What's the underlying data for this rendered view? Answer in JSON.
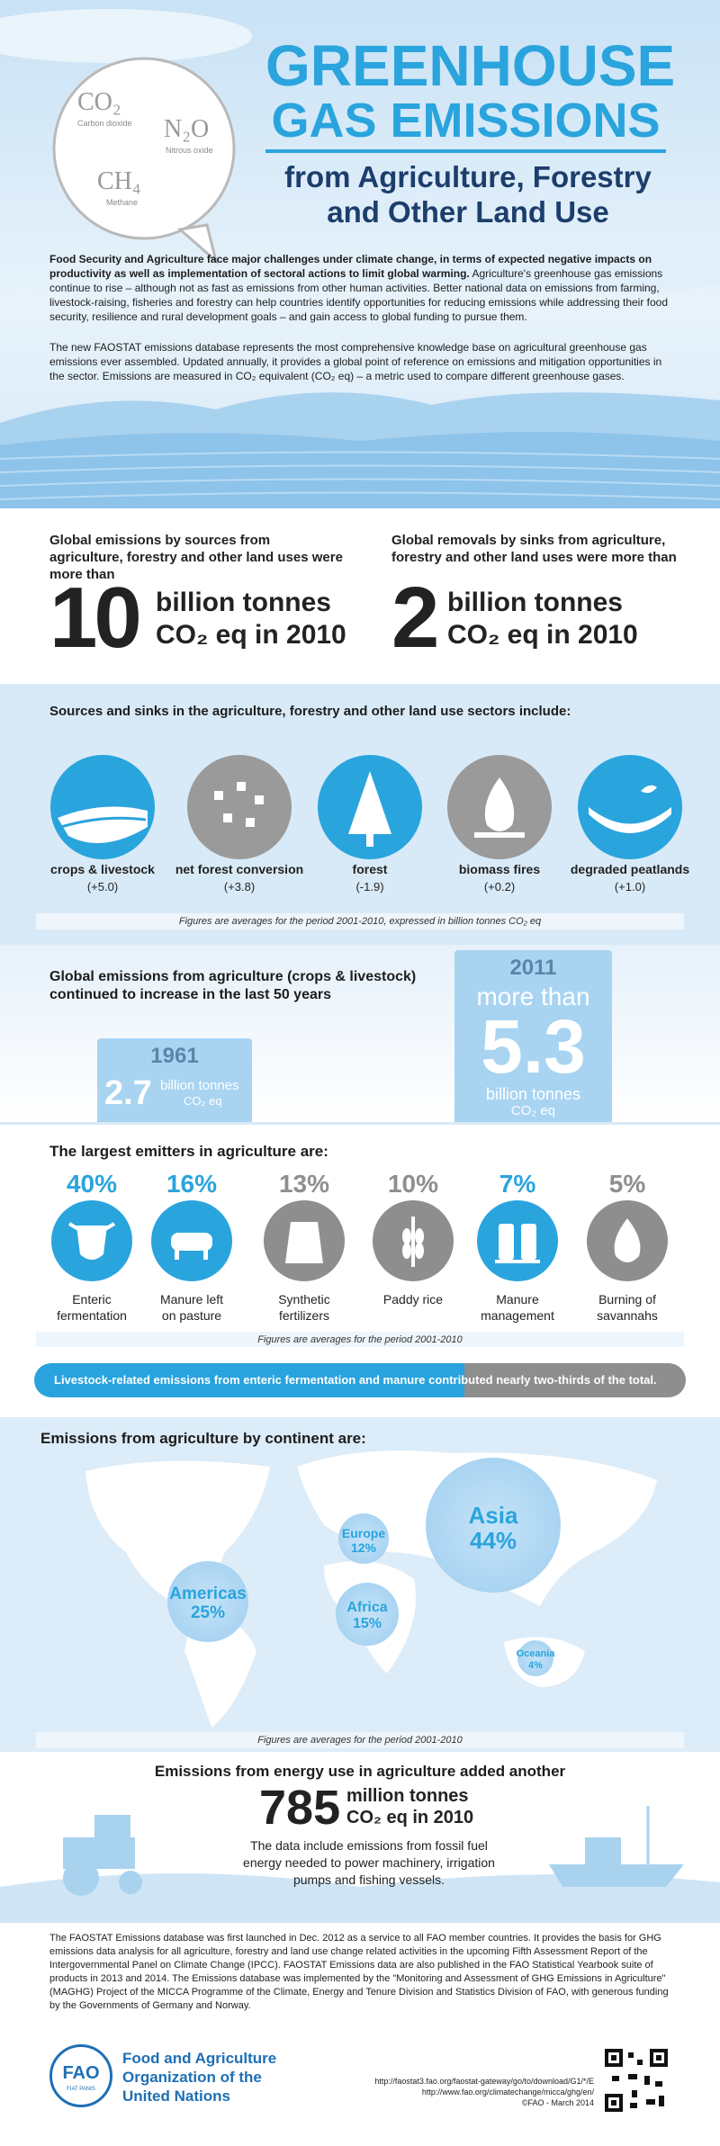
{
  "header": {
    "title_line1": "GREENHOUSE",
    "title_line2": "GAS EMISSIONS",
    "subtitle_line1": "from Agriculture, Forestry",
    "subtitle_line2": "and Other Land Use",
    "gases": [
      {
        "formula": "CO₂",
        "name": "Carbon dioxide"
      },
      {
        "formula": "N₂O",
        "name": "Nitrous oxide"
      },
      {
        "formula": "CH₄",
        "name": "Methane"
      }
    ]
  },
  "intro": {
    "paragraph1_bold": "Food Security and Agriculture face major challenges under climate change, in terms of expected negative impacts on productivity as well as implementation of sectoral actions to limit global warming.",
    "paragraph1_text": " Agriculture's greenhouse gas emissions continue to rise – although not as fast as emissions from other human activities. Better national data on emissions from farming, livestock-raising, fisheries and forestry can help countries identify opportunities for reducing emissions while addressing their food security, resilience and rural development goals – and gain access to global funding to pursue them.",
    "paragraph2": "The new FAOSTAT emissions database represents the most comprehensive knowledge base on agricultural greenhouse gas emissions ever assembled. Updated annually, it provides a global point of reference on emissions and mitigation opportunities in the sector. Emissions are measured in CO₂ equivalent (CO₂ eq) – a metric used to compare different greenhouse gases."
  },
  "totals": [
    {
      "label": "Global emissions by sources from agriculture, forestry and other land uses were more than",
      "number": "10",
      "unit_line1": "billion tonnes",
      "unit_line2": "CO₂ eq in 2010"
    },
    {
      "label": "Global removals by sinks from agriculture, forestry and other land uses were more than",
      "number": "2",
      "unit_line1": "billion tonnes",
      "unit_line2": "CO₂ eq in 2010"
    }
  ],
  "sectors": {
    "heading": "Sources and sinks in the agriculture, forestry and other land use sectors include:",
    "items": [
      {
        "label": "crops & livestock",
        "value": "(+5.0)"
      },
      {
        "label": "net forest conversion",
        "value": "(+3.8)"
      },
      {
        "label": "forest",
        "value": "(-1.9)"
      },
      {
        "label": "biomass fires",
        "value": "(+0.2)"
      },
      {
        "label": "degraded peatlands",
        "value": "(+1.0)"
      }
    ],
    "note": "Figures are averages for the period 2001-2010, expressed in billion tonnes CO₂ eq"
  },
  "growth": {
    "heading": "Global emissions from agriculture (crops & livestock) continued to increase in the last 50 years",
    "early": {
      "year": "1961",
      "value": "2.7",
      "unit_line1": "billion tonnes",
      "unit_line2": "CO₂ eq"
    },
    "late": {
      "year": "2011",
      "prefix": "more than",
      "value": "5.3",
      "unit_line1": "billion tonnes",
      "unit_line2": "CO₂ eq"
    }
  },
  "emitters": {
    "heading": "The largest emitters in agriculture are:",
    "items": [
      {
        "share": "40%",
        "label_line1": "Enteric",
        "label_line2": "fermentation"
      },
      {
        "share": "16%",
        "label_line1": "Manure left",
        "label_line2": "on pasture"
      },
      {
        "share": "13%",
        "label_line1": "Synthetic",
        "label_line2": "fertilizers"
      },
      {
        "share": "10%",
        "label_line1": "Paddy rice"
      },
      {
        "share": "7%",
        "label_line1": "Manure",
        "label_line2": "management"
      },
      {
        "share": "5%",
        "label_line1": "Burning of",
        "label_line2": "savannahs"
      }
    ],
    "note": "Figures are averages for the period 2001-2010"
  },
  "livestock": {
    "text": "Livestock-related emissions from enteric fermentation and manure contributed nearly two-thirds of the total."
  },
  "continents": {
    "heading": "Emissions from agriculture by continent are:",
    "items": [
      {
        "name": "Asia",
        "share": "44%"
      },
      {
        "name": "Americas",
        "share": "25%"
      },
      {
        "name": "Africa",
        "share": "15%"
      },
      {
        "name": "Europe",
        "share": "12%"
      },
      {
        "name": "Oceania",
        "share": "4%"
      }
    ],
    "note": "Figures are averages for the period 2001-2010"
  },
  "energy": {
    "heading": "Emissions from energy use in agriculture added another",
    "number": "785",
    "unit_line1": "million tonnes",
    "unit_line2": "CO₂ eq in 2010",
    "text": "The data include emissions from fossil fuel energy needed to power machinery, irrigation pumps and fishing vessels."
  },
  "footer": {
    "paragraph": "The FAOSTAT Emissions database was first launched in Dec. 2012 as a service to all FAO member countries. It provides the basis for GHG emissions data analysis for all agriculture, forestry and land use change related activities in the upcoming Fifth Assessment Report of the Intergovernmental Panel on Climate Change (IPCC). FAOSTAT Emissions data are also published in the FAO Statistical Yearbook suite of products in 2013 and 2014. The Emissions database was implemented by the \"Monitoring and Assessment of GHG Emissions in Agriculture\" (MAGHG) Project of the MICCA Programme of the Climate, Energy and Tenure Division and Statistics Division of FAO, with generous funding by the Governments of Germany and Norway.",
    "logo": "FAO",
    "logo_motto": "FIAT PANIS",
    "org_line1": "Food and Agriculture",
    "org_line2": "Organization of the",
    "org_line3": "United Nations",
    "links": [
      "http://faostat3.fao.org/faostat-gateway/go/to/download/G1/*/E",
      "http://www.fao.org/climatechange/micca/ghg/en/"
    ],
    "copyright": "©FAO - March 2014"
  }
}
